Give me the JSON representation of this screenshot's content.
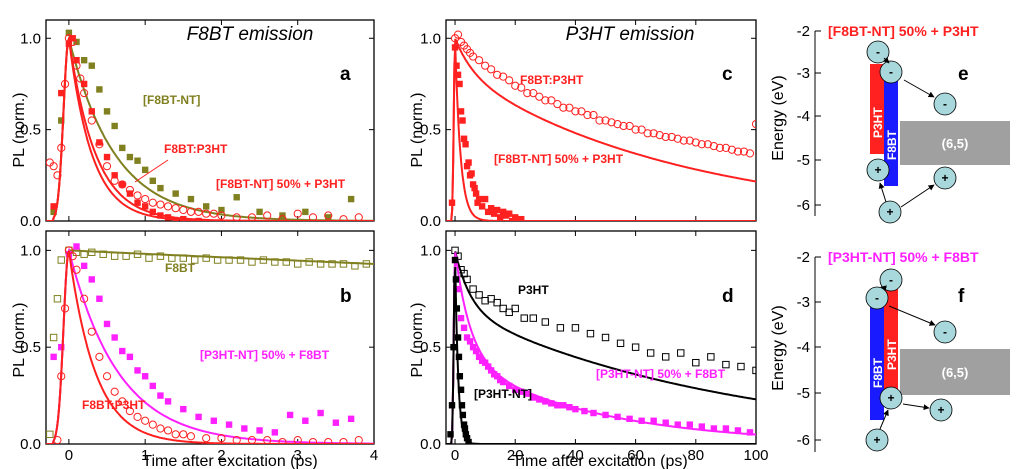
{
  "colors": {
    "f8bt_nt": "#808020",
    "f8bt": "#808020",
    "f8bt_p3ht": "#ff2020",
    "mix_f8bt_nt": "#ff2020",
    "mix_p3ht_nt": "#ff20ff",
    "p3ht": "#000000",
    "p3ht_nt": "#000000",
    "bar_p3ht": "#ff2020",
    "bar_f8bt": "#1a1aff",
    "box_65": "#a0a0a0",
    "circle": "#a8d8dc"
  },
  "chart_data": [
    {
      "id": "a",
      "type": "scatter",
      "title": "F8BT emission",
      "letter": "a",
      "xlabel": "",
      "ylabel": "PL (norm.)",
      "xlim": [
        -0.3,
        4
      ],
      "ylim": [
        0,
        1.1
      ],
      "yticks": [
        0.0,
        0.5,
        1.0
      ],
      "ytick_labels": [
        "0.0",
        "0.5",
        "1.0"
      ],
      "series": [
        {
          "name": "[F8BT-NT]",
          "color_key": "f8bt_nt",
          "marker": "filled-square",
          "tau": 0.6,
          "rise": 0.07,
          "x": [
            -0.2,
            -0.1,
            0.0,
            0.1,
            0.2,
            0.3,
            0.4,
            0.5,
            0.6,
            0.7,
            0.8,
            0.9,
            1.0,
            1.1,
            1.2,
            1.4,
            1.6,
            1.8,
            2.0,
            2.2,
            2.5,
            2.8,
            3.1,
            3.4,
            3.7
          ],
          "y": [
            0.05,
            0.55,
            1.03,
            0.98,
            0.88,
            0.85,
            0.72,
            0.6,
            0.52,
            0.4,
            0.35,
            0.33,
            0.28,
            0.22,
            0.18,
            0.15,
            0.12,
            0.08,
            0.06,
            0.13,
            0.05,
            0.03,
            0.05,
            0.02,
            0.12
          ]
        },
        {
          "name": "F8BT:P3HT",
          "color_key": "f8bt_p3ht",
          "marker": "open-circle",
          "tau": 0.35,
          "rise": 0.07,
          "x": [
            -0.25,
            -0.2,
            -0.15,
            -0.1,
            -0.05,
            0.0,
            0.05,
            0.1,
            0.15,
            0.2,
            0.3,
            0.4,
            0.5,
            0.6,
            0.7,
            0.8,
            0.9,
            1.0,
            1.1,
            1.2,
            1.3,
            1.4,
            1.5,
            1.6,
            1.7,
            1.8,
            1.9,
            2.0,
            2.2,
            2.4,
            2.6,
            2.8,
            3.0,
            3.2,
            3.4,
            3.6,
            3.8
          ],
          "y": [
            0.32,
            0.3,
            0.25,
            0.4,
            0.75,
            1.0,
            0.98,
            0.85,
            0.78,
            0.7,
            0.55,
            0.42,
            0.3,
            0.22,
            0.2,
            0.17,
            0.14,
            0.12,
            0.1,
            0.09,
            0.08,
            0.07,
            0.06,
            0.05,
            0.05,
            0.04,
            0.04,
            0.03,
            0.02,
            0.02,
            0.03,
            0.01,
            0.04,
            0.02,
            0.03,
            0.01,
            0.02
          ]
        },
        {
          "name": "[F8BT-NT] 50% + P3HT",
          "color_key": "mix_f8bt_nt",
          "marker": "filled-square",
          "tau": 0.3,
          "rise": 0.07,
          "x": [
            -0.2,
            -0.1,
            0.0,
            0.05,
            0.1,
            0.2,
            0.3,
            0.4,
            0.5,
            0.6,
            0.7,
            0.8,
            0.9,
            1.0,
            1.1,
            1.2,
            1.3,
            1.4,
            1.5,
            1.7
          ],
          "y": [
            0.08,
            0.7,
            0.97,
            1.0,
            0.88,
            0.75,
            0.6,
            0.43,
            0.35,
            0.25,
            0.2,
            0.15,
            0.1,
            0.08,
            0.05,
            0.03,
            0.02,
            0.0,
            0.01,
            0.0
          ]
        }
      ]
    },
    {
      "id": "b",
      "type": "scatter",
      "title": "",
      "letter": "b",
      "xlabel": "Time after excitation (ps)",
      "ylabel": "PL (norm.)",
      "xlim": [
        -0.3,
        4
      ],
      "ylim": [
        0,
        1.1
      ],
      "xticks": [
        0,
        1,
        2,
        3,
        4
      ],
      "xtick_labels": [
        "0",
        "1",
        "2",
        "3",
        "4"
      ],
      "yticks": [
        0.0,
        0.5,
        1.0
      ],
      "ytick_labels": [
        "0.0",
        "0.5",
        "1.0"
      ],
      "series": [
        {
          "name": "F8BT",
          "color_key": "f8bt",
          "marker": "open-square",
          "tau": 55,
          "rise": 0.07,
          "x": [
            -0.25,
            -0.2,
            -0.15,
            -0.1,
            0.0,
            0.1,
            0.2,
            0.3,
            0.45,
            0.6,
            0.75,
            0.9,
            1.05,
            1.2,
            1.35,
            1.5,
            1.65,
            1.8,
            1.95,
            2.1,
            2.25,
            2.4,
            2.55,
            2.7,
            2.85,
            3.0,
            3.15,
            3.3,
            3.45,
            3.6,
            3.75,
            3.9
          ],
          "y": [
            0.05,
            0.55,
            0.75,
            0.95,
            1.0,
            0.99,
            0.98,
            0.99,
            0.98,
            0.97,
            0.97,
            0.98,
            0.96,
            0.97,
            0.96,
            0.96,
            0.95,
            0.96,
            0.95,
            0.95,
            0.95,
            0.94,
            0.95,
            0.94,
            0.94,
            0.93,
            0.94,
            0.93,
            0.93,
            0.93,
            0.92,
            0.93
          ]
        },
        {
          "name": "[P3HT-NT] 50% + F8BT",
          "color_key": "mix_p3ht_nt",
          "marker": "filled-square",
          "tau": 0.65,
          "rise": 0.07,
          "x": [
            -0.2,
            -0.1,
            0.0,
            0.1,
            0.2,
            0.3,
            0.4,
            0.5,
            0.6,
            0.7,
            0.8,
            0.9,
            1.0,
            1.1,
            1.2,
            1.3,
            1.5,
            1.7,
            1.9,
            2.1,
            2.3,
            2.5,
            2.7,
            2.9,
            3.1,
            3.3,
            3.5,
            3.7
          ],
          "y": [
            0.45,
            0.5,
            0.98,
            1.02,
            0.92,
            0.85,
            0.75,
            0.62,
            0.55,
            0.48,
            0.45,
            0.38,
            0.35,
            0.3,
            0.25,
            0.22,
            0.18,
            0.14,
            0.12,
            0.1,
            0.08,
            0.07,
            0.06,
            0.15,
            0.12,
            0.16,
            0.11,
            0.13
          ]
        },
        {
          "name": "F8BT:P3HT",
          "color_key": "f8bt_p3ht",
          "marker": "open-circle",
          "tau": 0.35,
          "rise": 0.07,
          "x": [
            -0.15,
            -0.1,
            -0.05,
            0.0,
            0.05,
            0.1,
            0.2,
            0.3,
            0.4,
            0.5,
            0.6,
            0.7,
            0.8,
            0.9,
            1.0,
            1.1,
            1.2,
            1.3,
            1.4,
            1.5,
            1.6,
            1.8,
            2.0,
            2.2,
            2.4,
            2.6,
            2.8,
            3.0,
            3.2,
            3.4,
            3.6,
            3.8
          ],
          "y": [
            0.02,
            0.35,
            0.7,
            1.0,
            0.97,
            0.9,
            0.75,
            0.58,
            0.45,
            0.35,
            0.27,
            0.22,
            0.17,
            0.14,
            0.12,
            0.1,
            0.08,
            0.07,
            0.05,
            0.05,
            0.04,
            0.03,
            0.03,
            0.02,
            0.02,
            0.02,
            0.01,
            0.02,
            0.01,
            0.01,
            0.01,
            0.02
          ]
        }
      ]
    },
    {
      "id": "c",
      "type": "scatter",
      "title": "P3HT emission",
      "letter": "c",
      "xlabel": "",
      "ylabel": "PL (norm.)",
      "xlim": [
        -3,
        100
      ],
      "ylim": [
        0,
        1.1
      ],
      "yticks": [
        0.0,
        0.5,
        1.0
      ],
      "ytick_labels": [
        "0.0",
        "0.5",
        "1.0"
      ],
      "series": [
        {
          "name": "F8BT:P3HT",
          "color_key": "f8bt_p3ht",
          "marker": "open-circle",
          "tau": 75,
          "fast_amp": 0.18,
          "fast_tau": 6,
          "rise": 0.4,
          "x": [
            0,
            1,
            2,
            3,
            4,
            5,
            6,
            8,
            10,
            12,
            14,
            16,
            18,
            20,
            22,
            24,
            26,
            28,
            30,
            32,
            34,
            36,
            38,
            40,
            42,
            44,
            46,
            48,
            50,
            52,
            54,
            56,
            58,
            60,
            62,
            64,
            66,
            68,
            70,
            72,
            74,
            76,
            78,
            80,
            82,
            84,
            86,
            88,
            90,
            92,
            94,
            96,
            98,
            100
          ],
          "y": [
            1.0,
            1.02,
            0.98,
            0.96,
            0.94,
            0.92,
            0.9,
            0.88,
            0.85,
            0.83,
            0.8,
            0.79,
            0.77,
            0.74,
            0.73,
            0.7,
            0.7,
            0.68,
            0.66,
            0.66,
            0.64,
            0.62,
            0.62,
            0.6,
            0.6,
            0.58,
            0.58,
            0.55,
            0.55,
            0.54,
            0.53,
            0.52,
            0.52,
            0.5,
            0.5,
            0.48,
            0.48,
            0.47,
            0.46,
            0.46,
            0.45,
            0.44,
            0.44,
            0.43,
            0.42,
            0.42,
            0.41,
            0.4,
            0.4,
            0.39,
            0.38,
            0.38,
            0.37,
            0.53
          ]
        },
        {
          "name": "[F8BT-NT] 50% + P3HT",
          "color_key": "mix_f8bt_nt",
          "marker": "filled-square",
          "tau": 1.8,
          "rise": 0.4,
          "x": [
            -1,
            0,
            0.5,
            1,
            1.5,
            2,
            2.5,
            3,
            3.5,
            4,
            4.5,
            5,
            5.5,
            6,
            6.5,
            7,
            7.5,
            8,
            9,
            10,
            11,
            12,
            13,
            14,
            15,
            16,
            17,
            18,
            19,
            20,
            22
          ],
          "y": [
            0.1,
            0.95,
            0.85,
            0.8,
            0.75,
            0.6,
            0.55,
            0.45,
            0.42,
            0.3,
            0.32,
            0.25,
            0.26,
            0.2,
            0.18,
            0.15,
            0.1,
            0.12,
            0.08,
            0.12,
            0.05,
            0.07,
            0.04,
            0.06,
            0.02,
            0.05,
            0.03,
            0.04,
            0.0,
            0.02,
            0.01
          ]
        }
      ]
    },
    {
      "id": "d",
      "type": "scatter",
      "title": "",
      "letter": "d",
      "xlabel": "Time after excitation (ps)",
      "ylabel": "PL (norm.)",
      "xlim": [
        -3,
        100
      ],
      "ylim": [
        0,
        1.1
      ],
      "xticks": [
        0,
        20,
        40,
        60,
        80,
        100
      ],
      "xtick_labels": [
        "0",
        "20",
        "40",
        "60",
        "80",
        "100"
      ],
      "yticks": [
        0.0,
        0.5,
        1.0
      ],
      "ytick_labels": [
        "0.0",
        "0.5",
        "1.0"
      ],
      "series": [
        {
          "name": "P3HT",
          "color_key": "p3ht",
          "marker": "open-square",
          "tau": 90,
          "fast_amp": 0.3,
          "fast_tau": 5,
          "rise": 0.4,
          "x": [
            0,
            1,
            2,
            3,
            4,
            6,
            8,
            10,
            12,
            14,
            16,
            18,
            20,
            23,
            26,
            30,
            35,
            40,
            45,
            50,
            55,
            60,
            65,
            70,
            75,
            80,
            85,
            90,
            95,
            100
          ],
          "y": [
            1.0,
            0.97,
            0.9,
            0.88,
            0.85,
            0.8,
            0.77,
            0.74,
            0.75,
            0.73,
            0.7,
            0.68,
            0.7,
            0.65,
            0.65,
            0.63,
            0.6,
            0.6,
            0.57,
            0.55,
            0.52,
            0.5,
            0.47,
            0.45,
            0.47,
            0.42,
            0.45,
            0.41,
            0.4,
            0.38
          ]
        },
        {
          "name": "[P3HT-NT] 50% + F8BT",
          "color_key": "mix_p3ht_nt",
          "marker": "filled-square",
          "tau": 45,
          "fast_amp": 0.55,
          "fast_tau": 5,
          "rise": 0.4,
          "x": [
            0,
            1,
            2,
            3,
            4,
            5,
            6,
            7,
            8,
            9,
            10,
            11,
            12,
            13,
            14,
            15,
            16,
            18,
            20,
            22,
            24,
            26,
            28,
            30,
            32,
            34,
            36,
            38,
            40,
            43,
            46,
            50,
            54,
            58,
            62,
            66,
            70,
            74,
            78,
            82,
            86,
            90,
            94,
            98
          ],
          "y": [
            0.95,
            0.8,
            0.65,
            0.6,
            0.55,
            0.53,
            0.5,
            0.48,
            0.45,
            0.43,
            0.42,
            0.4,
            0.38,
            0.36,
            0.35,
            0.33,
            0.32,
            0.3,
            0.28,
            0.27,
            0.26,
            0.24,
            0.23,
            0.22,
            0.21,
            0.2,
            0.2,
            0.19,
            0.18,
            0.17,
            0.16,
            0.15,
            0.14,
            0.13,
            0.12,
            0.12,
            0.11,
            0.1,
            0.1,
            0.09,
            0.08,
            0.08,
            0.07,
            0.06
          ]
        },
        {
          "name": "[P3HT-NT]",
          "color_key": "p3ht_nt",
          "marker": "filled-square",
          "tau": 1.0,
          "rise": 0.4,
          "x": [
            -1.5,
            -1,
            -0.5,
            0,
            0.3,
            0.6,
            1,
            1.3,
            1.6,
            2,
            2.3,
            2.6,
            3,
            3.3,
            3.6,
            4,
            4.5
          ],
          "y": [
            0.05,
            0.2,
            0.5,
            0.95,
            0.85,
            0.7,
            0.55,
            0.45,
            0.35,
            0.28,
            0.2,
            0.15,
            0.1,
            0.08,
            0.05,
            0.03,
            0.01
          ]
        }
      ]
    }
  ],
  "diagram_e": {
    "title": "[F8BT-NT] 50% + P3HT",
    "letter": "e",
    "ylabel": "Energy (eV)",
    "yticks": [
      "-2",
      "-3",
      "-4",
      "-5",
      "-6"
    ],
    "bar1_label": "P3HT",
    "bar2_label": "F8BT",
    "box_label": "(6,5)",
    "minus": "-",
    "plus": "+"
  },
  "diagram_f": {
    "title": "[P3HT-NT] 50% + F8BT",
    "letter": "f",
    "ylabel": "Energy (eV)",
    "yticks": [
      "-2",
      "-3",
      "-4",
      "-5",
      "-6"
    ],
    "bar1_label": "F8BT",
    "bar2_label": "P3HT",
    "box_label": "(6,5)",
    "minus": "-",
    "plus": "+"
  }
}
